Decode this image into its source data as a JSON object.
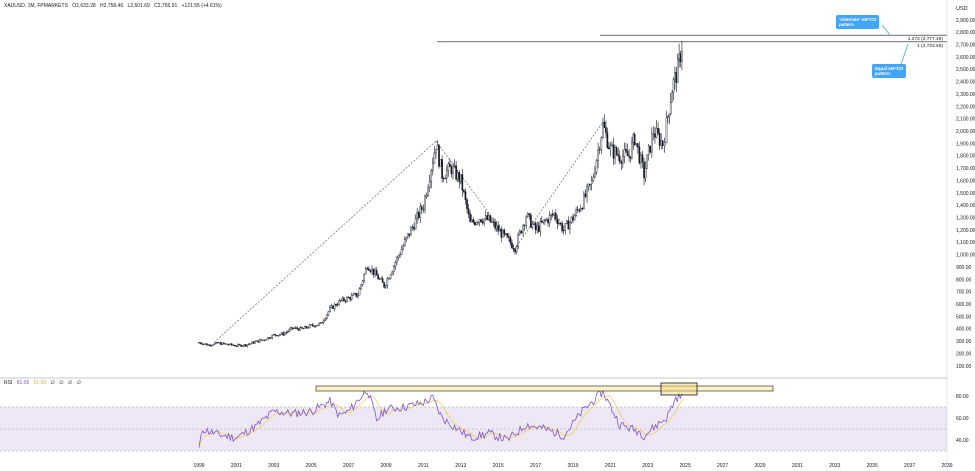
{
  "header": {
    "symbol": "XAUUSD, 1M, FPMARKETS",
    "open": "O2,633.28",
    "high": "H2,758.46",
    "low": "L2,601.69",
    "close": "C2,755.91",
    "change": "+121.55 (+4.61%)"
  },
  "rsi_header": {
    "label": "RSI",
    "value1": "81.06",
    "value2": "61.00",
    "extra": [
      "∅",
      "∅",
      "∅",
      "∅"
    ]
  },
  "annotations": {
    "alt_abcd_line1": "'Alternate' AB=CD",
    "alt_abcd_line2": "pattern",
    "equal_abcd_line1": "Equal AB=CD",
    "equal_abcd_line2": "pattern",
    "level_1272": "1.272 (2,777.48)",
    "level_1": "1 (2,723.59)"
  },
  "colors": {
    "candle": "#131722",
    "callout": "#42a5f5",
    "rsi_line": "#7e57c2",
    "rsi_band": "#ede7f6",
    "rsi_ma": "#f2c94c",
    "highlight_box": "#fff3c4"
  },
  "chart_data": [
    {
      "type": "candlestick",
      "title": "XAUUSD, 1M, FPMARKETS",
      "y_unit": "USD",
      "yticks": [
        100,
        200,
        300,
        400,
        500,
        600,
        700,
        800,
        900,
        1000,
        1100,
        1200,
        1300,
        1400,
        1500,
        1600,
        1700,
        1800,
        1900,
        2000,
        2100,
        2200,
        2300,
        2400,
        2500,
        2600,
        2700,
        2800,
        2900
      ],
      "xticks": [
        "1999",
        "2001",
        "2003",
        "2005",
        "2007",
        "2009",
        "2011",
        "2013",
        "2015",
        "2017",
        "2019",
        "2021",
        "2023",
        "2025",
        "2027",
        "2029",
        "2031",
        "2033",
        "2035",
        "2037",
        "2039"
      ],
      "series": [
        {
          "values": [
            [
              1999.0,
              290
            ],
            [
              1999.5,
              270
            ],
            [
              2000.0,
              285
            ],
            [
              2000.5,
              275
            ],
            [
              2001.0,
              265
            ],
            [
              2001.5,
              270
            ],
            [
              2002.0,
              295
            ],
            [
              2002.5,
              315
            ],
            [
              2003.0,
              350
            ],
            [
              2003.5,
              360
            ],
            [
              2004.0,
              405
            ],
            [
              2004.5,
              400
            ],
            [
              2005.0,
              425
            ],
            [
              2005.5,
              440
            ],
            [
              2006.0,
              560
            ],
            [
              2006.5,
              620
            ],
            [
              2007.0,
              650
            ],
            [
              2007.5,
              680
            ],
            [
              2008.0,
              920
            ],
            [
              2008.5,
              830
            ],
            [
              2008.9,
              750
            ],
            [
              2009.5,
              940
            ],
            [
              2010.0,
              1100
            ],
            [
              2010.5,
              1250
            ],
            [
              2011.0,
              1400
            ],
            [
              2011.67,
              1900
            ],
            [
              2012.0,
              1650
            ],
            [
              2012.5,
              1700
            ],
            [
              2013.0,
              1600
            ],
            [
              2013.5,
              1250
            ],
            [
              2014.0,
              1300
            ],
            [
              2014.5,
              1280
            ],
            [
              2015.0,
              1200
            ],
            [
              2015.9,
              1060
            ],
            [
              2016.5,
              1320
            ],
            [
              2017.0,
              1200
            ],
            [
              2017.5,
              1270
            ],
            [
              2018.0,
              1330
            ],
            [
              2018.5,
              1200
            ],
            [
              2019.0,
              1300
            ],
            [
              2019.5,
              1420
            ],
            [
              2020.0,
              1580
            ],
            [
              2020.6,
              2050
            ],
            [
              2021.0,
              1850
            ],
            [
              2021.5,
              1800
            ],
            [
              2022.0,
              1800
            ],
            [
              2022.3,
              1950
            ],
            [
              2022.8,
              1650
            ],
            [
              2023.3,
              2000
            ],
            [
              2023.8,
              1900
            ],
            [
              2024.0,
              2050
            ],
            [
              2024.3,
              2350
            ],
            [
              2024.6,
              2500
            ],
            [
              2024.9,
              2756
            ]
          ]
        }
      ],
      "abcd_pattern": [
        [
          1999.8,
          290
        ],
        [
          2011.67,
          1920
        ],
        [
          2015.9,
          1050
        ],
        [
          2020.6,
          2075
        ]
      ],
      "levels": [
        {
          "ratio": 1.272,
          "value": 2777.48
        },
        {
          "ratio": 1,
          "value": 2723.59
        }
      ]
    },
    {
      "type": "line",
      "title": "RSI",
      "yticks": [
        40,
        60,
        80
      ],
      "bands": [
        30,
        50,
        70
      ],
      "series": [
        {
          "name": "RSI",
          "values": [
            [
              1999.0,
              32
            ],
            [
              1999.2,
              50
            ],
            [
              2000.0,
              45
            ],
            [
              2001.0,
              42
            ],
            [
              2002.0,
              52
            ],
            [
              2003.0,
              66
            ],
            [
              2004.0,
              64
            ],
            [
              2005.0,
              66
            ],
            [
              2006.0,
              75
            ],
            [
              2006.5,
              62
            ],
            [
              2007.0,
              66
            ],
            [
              2008.0,
              86
            ],
            [
              2008.5,
              58
            ],
            [
              2009.0,
              68
            ],
            [
              2010.0,
              70
            ],
            [
              2011.0,
              74
            ],
            [
              2011.5,
              78
            ],
            [
              2012.0,
              60
            ],
            [
              2013.0,
              48
            ],
            [
              2013.5,
              42
            ],
            [
              2014.5,
              46
            ],
            [
              2015.5,
              40
            ],
            [
              2016.5,
              54
            ],
            [
              2017.5,
              50
            ],
            [
              2018.5,
              44
            ],
            [
              2019.5,
              66
            ],
            [
              2020.6,
              84
            ],
            [
              2021.5,
              54
            ],
            [
              2022.5,
              48
            ],
            [
              2022.8,
              44
            ],
            [
              2023.5,
              54
            ],
            [
              2024.0,
              60
            ],
            [
              2024.5,
              78
            ],
            [
              2024.9,
              81
            ]
          ]
        }
      ]
    }
  ]
}
